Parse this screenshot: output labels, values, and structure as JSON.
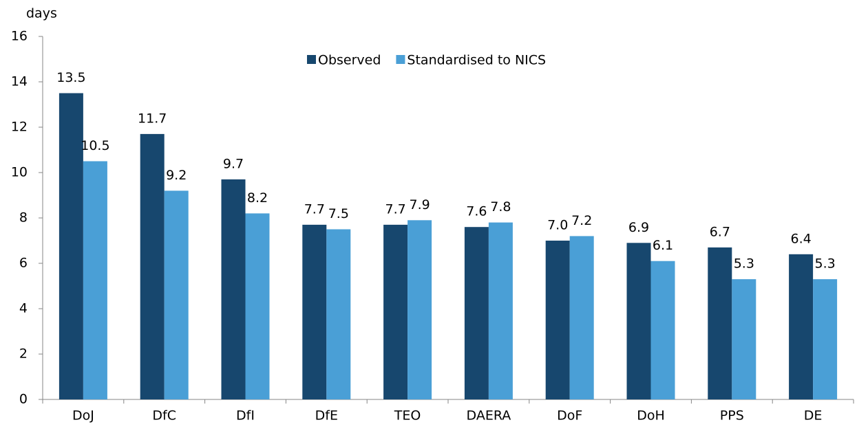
{
  "chart_data": {
    "type": "bar",
    "y_label": "days",
    "categories": [
      "DoJ",
      "DfC",
      "DfI",
      "DfE",
      "TEO",
      "DAERA",
      "DoF",
      "DoH",
      "PPS",
      "DE"
    ],
    "series": [
      {
        "name": "Observed",
        "color": "#17476e",
        "values": [
          13.5,
          11.7,
          9.7,
          7.7,
          7.7,
          7.6,
          7.0,
          6.9,
          6.7,
          6.4
        ],
        "value_labels": [
          "13.5",
          "11.7",
          "9.7",
          "7.7",
          "7.7",
          "7.6",
          "7.0",
          "6.9",
          "6.7",
          "6.4"
        ]
      },
      {
        "name": "Standardised to NICS",
        "color": "#4a9fd6",
        "values": [
          10.5,
          9.2,
          8.2,
          7.5,
          7.9,
          7.8,
          7.2,
          6.1,
          5.3,
          5.3
        ],
        "value_labels": [
          "10.5",
          "9.2",
          "8.2",
          "7.5",
          "7.9",
          "7.8",
          "7.2",
          "6.1",
          "5.3",
          "5.3"
        ]
      }
    ],
    "ylim": [
      0,
      16
    ],
    "yticks": [
      0,
      2,
      4,
      6,
      8,
      10,
      12,
      14,
      16
    ],
    "grid": false,
    "legend": "top"
  }
}
